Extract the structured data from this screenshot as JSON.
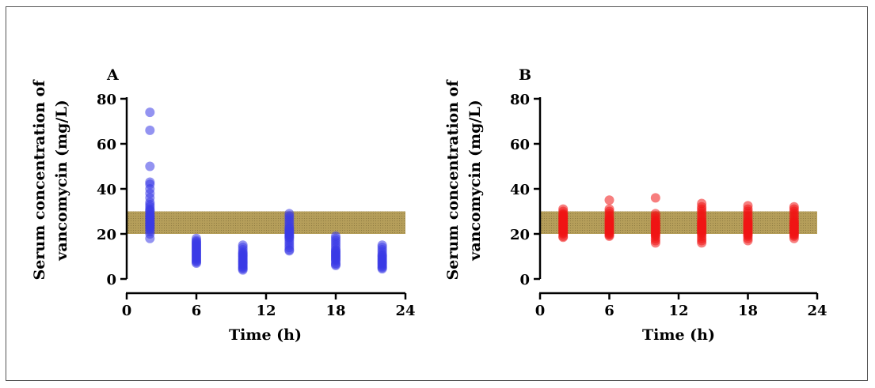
{
  "chart_data": [
    {
      "type": "scatter",
      "panel_label": "A",
      "xlabel": "Time (h)",
      "ylabel_lines": [
        "Serum concentration of",
        "vancomycin (mg/L)"
      ],
      "xlim": [
        0,
        24
      ],
      "ylim": [
        0,
        80
      ],
      "xticks": [
        "0",
        "6",
        "12",
        "18",
        "24"
      ],
      "yticks": [
        "0",
        "20",
        "40",
        "60",
        "80"
      ],
      "target_band": [
        20,
        30
      ],
      "point_color": "#3a3ae6",
      "band_color": "#b59e5a",
      "groups": [
        {
          "x": 2,
          "y": [
            18,
            20,
            21,
            22,
            22.5,
            23,
            23.5,
            24,
            24.5,
            25,
            25.5,
            26,
            26.5,
            27,
            27.5,
            28,
            28.5,
            29,
            30,
            30.5,
            31,
            32,
            33,
            34,
            36,
            38,
            40,
            42,
            43,
            50,
            66,
            74
          ]
        },
        {
          "x": 6,
          "y": [
            7,
            7.5,
            8,
            8.5,
            9,
            9.5,
            10,
            10.5,
            11,
            11.5,
            12,
            12.5,
            13,
            13.5,
            14,
            14.5,
            15,
            15.5,
            16,
            16.5,
            17,
            18
          ]
        },
        {
          "x": 10,
          "y": [
            4,
            4.5,
            5,
            5.5,
            6,
            6.5,
            7,
            7.5,
            8,
            8.5,
            9,
            9.5,
            10,
            10.5,
            11,
            11.5,
            12,
            13,
            14,
            15
          ]
        },
        {
          "x": 14,
          "y": [
            12.5,
            13,
            14,
            15,
            16,
            17,
            18,
            18.5,
            19,
            19.5,
            20,
            20.5,
            21,
            21.5,
            22,
            22.5,
            23,
            24,
            25,
            26,
            27,
            28,
            29
          ]
        },
        {
          "x": 18,
          "y": [
            6,
            6.5,
            7,
            8,
            8.5,
            9,
            9.5,
            10,
            10.5,
            11,
            11.5,
            12,
            12.5,
            13,
            14,
            15,
            16,
            17,
            18,
            19
          ]
        },
        {
          "x": 22,
          "y": [
            4.5,
            5,
            5.5,
            6,
            6.5,
            7,
            7.5,
            8,
            8.5,
            9,
            9.5,
            10,
            10.5,
            11,
            12,
            13,
            14,
            15
          ]
        }
      ]
    },
    {
      "type": "scatter",
      "panel_label": "B",
      "xlabel": "Time (h)",
      "ylabel_lines": [
        "Serum concentration of",
        "vancomycin (mg/L)"
      ],
      "xlim": [
        0,
        24
      ],
      "ylim": [
        0,
        80
      ],
      "xticks": [
        "0",
        "6",
        "12",
        "18",
        "24"
      ],
      "yticks": [
        "0",
        "20",
        "40",
        "60",
        "80"
      ],
      "target_band": [
        20,
        30
      ],
      "point_color": "#f01414",
      "band_color": "#b59e5a",
      "groups": [
        {
          "x": 2,
          "y": [
            18.5,
            19,
            20,
            20.5,
            21,
            21.5,
            22,
            22.5,
            23,
            23.5,
            24,
            24.5,
            25,
            25.5,
            26,
            26.5,
            27,
            27.5,
            28,
            28.5,
            29,
            30,
            31
          ]
        },
        {
          "x": 6,
          "y": [
            19,
            19.5,
            20,
            20.5,
            21,
            21.5,
            22,
            22.5,
            23,
            23.5,
            24,
            24.5,
            25,
            25.5,
            26,
            26.5,
            27,
            28,
            29,
            30,
            31,
            35
          ]
        },
        {
          "x": 10,
          "y": [
            16,
            17,
            18,
            19,
            19.5,
            20,
            20.5,
            21,
            21.5,
            22,
            22.5,
            23,
            23.5,
            24,
            24.5,
            25,
            25.5,
            26,
            27,
            28,
            29,
            36
          ]
        },
        {
          "x": 14,
          "y": [
            16,
            17,
            18,
            19,
            20,
            20.5,
            21,
            21.5,
            22,
            22.5,
            23,
            23.5,
            24,
            24.5,
            25,
            25.5,
            26,
            27,
            28,
            29,
            30,
            31,
            32,
            33.5
          ]
        },
        {
          "x": 18,
          "y": [
            17,
            18,
            19,
            19.5,
            20,
            20.5,
            21,
            21.5,
            22,
            22.5,
            23,
            23.5,
            24,
            24.5,
            25,
            25.5,
            26,
            27,
            28,
            29,
            30,
            31,
            32.5
          ]
        },
        {
          "x": 22,
          "y": [
            18,
            19,
            19.5,
            20,
            20.5,
            21,
            21.5,
            22,
            22.5,
            23,
            23.5,
            24,
            24.5,
            25,
            25.5,
            26,
            27,
            28,
            29,
            30,
            31,
            32
          ]
        }
      ]
    }
  ]
}
